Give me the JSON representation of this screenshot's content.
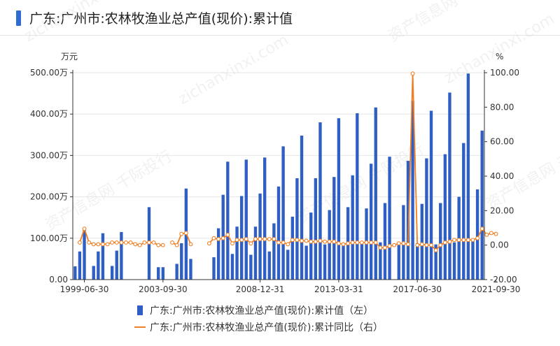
{
  "title": "广东:广州市:农林牧渔业总产值(现价):累计值",
  "watermark": {
    "texts": [
      "资产信息网 千际投行",
      "zichanxinxi.com"
    ]
  },
  "colors": {
    "bar": "#2f5fc4",
    "line": "#f07f25",
    "title_accent": "#2f6bd1",
    "axis": "#333333"
  },
  "chart_data": {
    "type": "bar",
    "left_axis": {
      "unit_label": "万元",
      "ticks": [
        "0.00",
        "100.00万",
        "200.00万",
        "300.00万",
        "400.00万",
        "500.00万"
      ],
      "tick_values": [
        0,
        100,
        200,
        300,
        400,
        500
      ],
      "ylim": [
        0,
        500
      ]
    },
    "right_axis": {
      "unit_label": "%",
      "ticks": [
        "-20.00",
        "0.00",
        "20.00",
        "40.00",
        "60.00",
        "80.00",
        "100.00"
      ],
      "tick_values": [
        -20,
        0,
        20,
        40,
        60,
        80,
        100
      ],
      "ylim": [
        -20,
        100
      ]
    },
    "x_tick_labels": [
      "1999-06-30",
      "2003-09-30",
      "2008-12-31",
      "2013-03-31",
      "2017-06-30",
      "2021-09-30"
    ],
    "x_tick_indices": [
      2,
      19,
      40,
      57,
      74,
      91
    ],
    "series": [
      {
        "name": "广东:广州市:农林牧渔业总产值(现价):累计值（左）",
        "kind": "bar",
        "axis": "left",
        "values": [
          32,
          68,
          120,
          null,
          33,
          68,
          112,
          null,
          33,
          70,
          115,
          null,
          null,
          null,
          null,
          null,
          175,
          null,
          30,
          30,
          null,
          null,
          38,
          88,
          220,
          50,
          null,
          null,
          null,
          null,
          54,
          124,
          205,
          285,
          62,
          128,
          202,
          290,
          60,
          128,
          208,
          295,
          68,
          136,
          225,
          322,
          72,
          152,
          245,
          348,
          82,
          162,
          245,
          380,
          85,
          168,
          248,
          390,
          88,
          175,
          252,
          402,
          88,
          172,
          280,
          416,
          90,
          185,
          297,
          null,
          84,
          180,
          287,
          432,
          88,
          183,
          293,
          408,
          85,
          185,
          303,
          452,
          90,
          200,
          330,
          498,
          92,
          218,
          360
        ]
      },
      {
        "name": "广东:广州市:农林牧渔业总产值(现价):累计同比（右）",
        "kind": "line",
        "axis": "right",
        "values": [
          null,
          1.5,
          9.5,
          1.5,
          0.5,
          0.5,
          0.5,
          0.5,
          1.5,
          1.5,
          1.5,
          1.5,
          1.5,
          0.5,
          0.0,
          1.5,
          1.5,
          1.5,
          0.0,
          0.0,
          null,
          1.5,
          0.0,
          6.5,
          7.0,
          0.5,
          null,
          null,
          null,
          1.0,
          4.0,
          3.5,
          4.0,
          6.0,
          1.0,
          3.0,
          3.0,
          3.5,
          1.0,
          3.5,
          3.5,
          3.5,
          3.5,
          3.5,
          1.5,
          1.5,
          0.5,
          3.0,
          3.0,
          2.5,
          2.5,
          2.0,
          2.0,
          2.5,
          2.0,
          2.0,
          2.0,
          1.0,
          0.5,
          1.0,
          1.5,
          1.5,
          1.5,
          1.5,
          1.5,
          1.5,
          -1.5,
          -1.5,
          -0.5,
          0.0,
          1.0,
          1.0,
          0.5,
          99.5,
          0.0,
          0.5,
          0.0,
          0.0,
          -3.0,
          0.0,
          1.5,
          2.0,
          3.0,
          3.0,
          3.0,
          3.0,
          3.0,
          4.0,
          9.5,
          6.0,
          7.0,
          6.5
        ]
      }
    ],
    "legend": [
      {
        "label": "广东:广州市:农林牧渔业总产值(现价):累计值（左）",
        "kind": "bar"
      },
      {
        "label": "广东:广州市:农林牧渔业总产值(现价):累计同比（右）",
        "kind": "line"
      }
    ],
    "legend_placement": "bottom",
    "grid": true
  }
}
